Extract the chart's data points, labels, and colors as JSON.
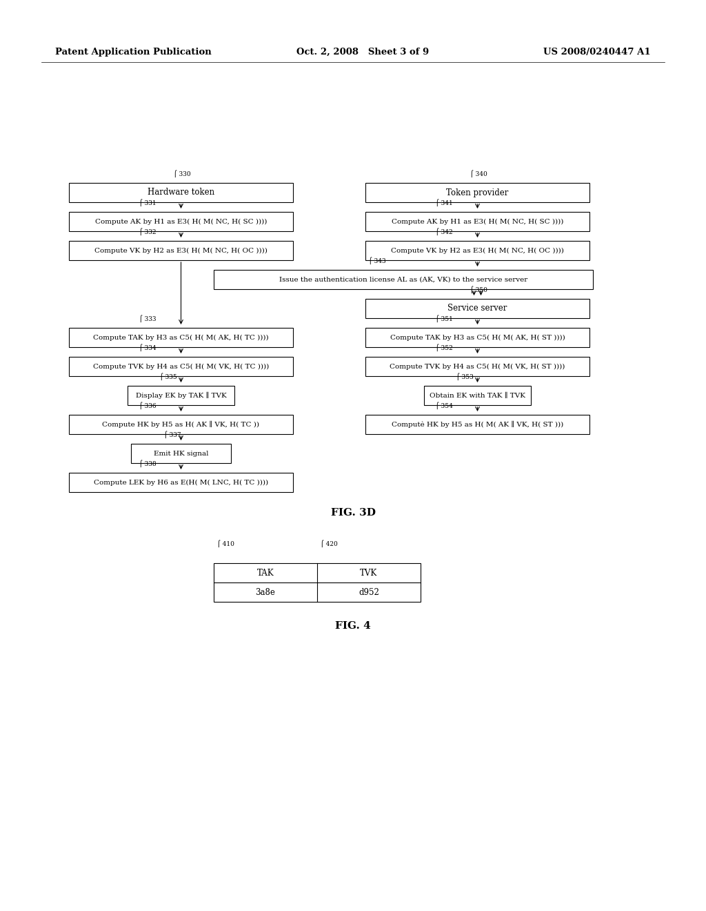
{
  "bg_color": "#ffffff",
  "header_left": "Patent Application Publication",
  "header_mid": "Oct. 2, 2008   Sheet 3 of 9",
  "header_right": "US 2008/0240447 A1",
  "fig3d_label": "FIG. 3D",
  "fig4_label": "FIG. 4",
  "box_330_text": "Hardware token",
  "box_331_text": "Compute AK by H1 as E3( H( M( NC, H( SC ))))",
  "box_332_text": "Compute VK by H2 as E3( H( M( NC, H( OC ))))",
  "box_333_text": "Compute TAK by H3 as C5( H( M( AK, H( TC ))))",
  "box_334_text": "Compute TVK by H4 as C5( H( M( VK, H( TC ))))",
  "box_335_text": "Display EK by TAK ∥ TVK",
  "box_336_text": "Compute HK by H5 as H( AK ∥ VK, H( TC ))",
  "box_337_text": "Emit HK signal",
  "box_338_text": "Compute LEK by H6 as E(H( M( LNC, H( TC ))))",
  "box_340_text": "Token provider",
  "box_341_text": "Compute AK by H1 as E3( H( M( NC, H( SC ))))",
  "box_342_text": "Compute VK by H2 as E3( H( M( NC, H( OC ))))",
  "box_343_text": "Issue the authentication license AL as (AK, VK) to the service server",
  "box_350_text": "Service server",
  "box_351_text": "Compute TAK by H3 as C5( H( M( AK, H( ST ))))",
  "box_352_text": "Compute TVK by H4 as C5( H( M( VK, H( ST ))))",
  "box_353_text": "Obtain EK with TAK ∥ TVK",
  "box_354_text": "Computè HK by H5 as H( M( AK ∥ VK, H( ST )))",
  "tak_val": "3a8e",
  "tvk_val": "d952"
}
